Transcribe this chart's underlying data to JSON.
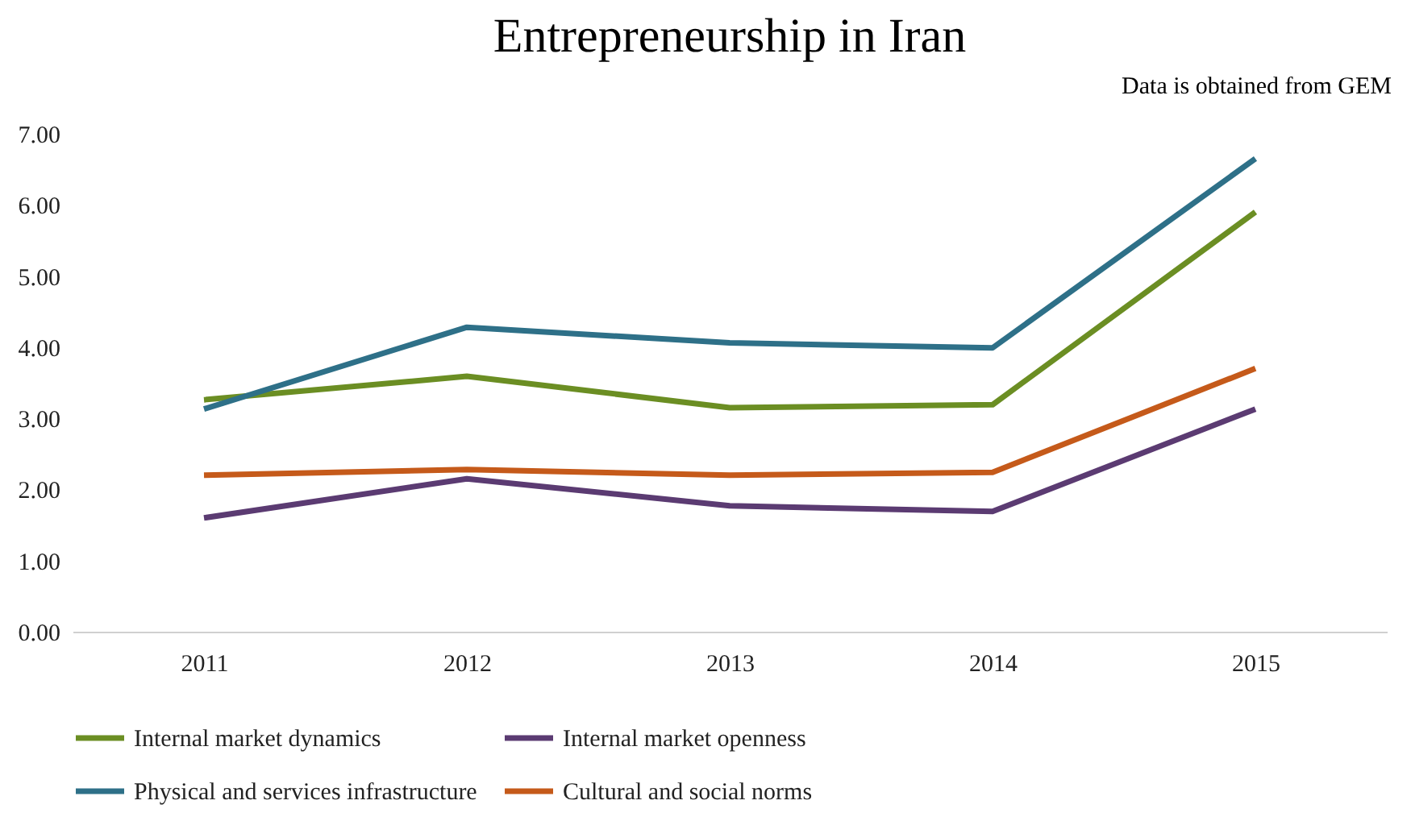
{
  "chart_data": {
    "type": "line",
    "title": "Entrepreneurship  in Iran",
    "annotations": [
      "Data is obtained from GEM"
    ],
    "categories": [
      "2011",
      "2012",
      "2013",
      "2014",
      "2015"
    ],
    "series": [
      {
        "name": "Internal market dynamics",
        "color": "#6b8e23",
        "values": [
          3.26,
          3.59,
          3.15,
          3.19,
          5.9
        ]
      },
      {
        "name": "Internal market openness",
        "color": "#5b3b72",
        "values": [
          1.6,
          2.15,
          1.77,
          1.69,
          3.13
        ]
      },
      {
        "name": "Physical and services infrastructure",
        "color": "#2e7088",
        "values": [
          3.13,
          4.28,
          4.06,
          3.99,
          6.65
        ]
      },
      {
        "name": "Cultural and social norms",
        "color": "#c55a1a",
        "values": [
          2.2,
          2.28,
          2.2,
          2.24,
          3.7
        ]
      }
    ],
    "ylim": [
      0,
      7
    ],
    "yticks": [
      {
        "value": 0,
        "label": "0.00"
      },
      {
        "value": 1,
        "label": "1.00"
      },
      {
        "value": 2,
        "label": "2.00"
      },
      {
        "value": 3,
        "label": "3.00"
      },
      {
        "value": 4,
        "label": "4.00"
      },
      {
        "value": 5,
        "label": "5.00"
      },
      {
        "value": 6,
        "label": "6.00"
      },
      {
        "value": 7,
        "label": "7.00"
      }
    ],
    "grid": false,
    "legend": "bottom",
    "marker": "none",
    "line_style": "solid"
  }
}
